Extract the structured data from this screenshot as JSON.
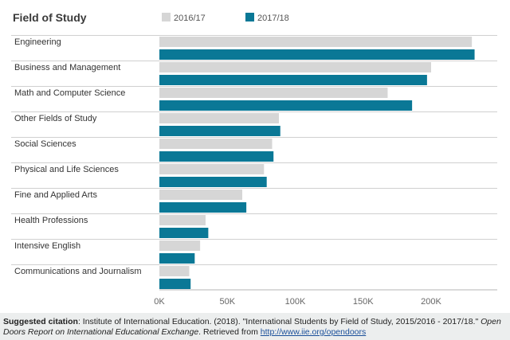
{
  "chart_data": {
    "type": "bar",
    "orientation": "horizontal",
    "title": "Field of Study",
    "categories": [
      "Engineering",
      "Business and Management",
      "Math and Computer Science",
      "Other Fields of Study",
      "Social Sciences",
      "Physical and Life Sciences",
      "Fine and Applied Arts",
      "Health Professions",
      "Intensive English",
      "Communications and Journalism"
    ],
    "series": [
      {
        "name": "2016/17",
        "color": "#d6d6d6",
        "values": [
          230000,
          200000,
          168000,
          88000,
          83000,
          77000,
          61000,
          34000,
          30000,
          22000
        ]
      },
      {
        "name": "2017/18",
        "color": "#0a7896",
        "values": [
          232000,
          197000,
          186000,
          89000,
          84000,
          79000,
          64000,
          36000,
          26000,
          23000
        ]
      }
    ],
    "xlim": [
      0,
      250000
    ],
    "xticks": [
      0,
      50000,
      100000,
      150000,
      200000
    ],
    "xtick_labels": [
      "0K",
      "50K",
      "100K",
      "150K",
      "200K"
    ],
    "legend_position": "top",
    "grid": "row separators"
  },
  "citation": {
    "label": "Suggested citation",
    "text_plain": ": Institute of International Education. (2018). \"International Students by Field of Study, 2015/2016 - 2017/18.\" ",
    "text_italic": "Open Doors Report on International Educational Exchange",
    "text_after": ". Retrieved from ",
    "link": "http://www.iie.org/opendoors"
  }
}
